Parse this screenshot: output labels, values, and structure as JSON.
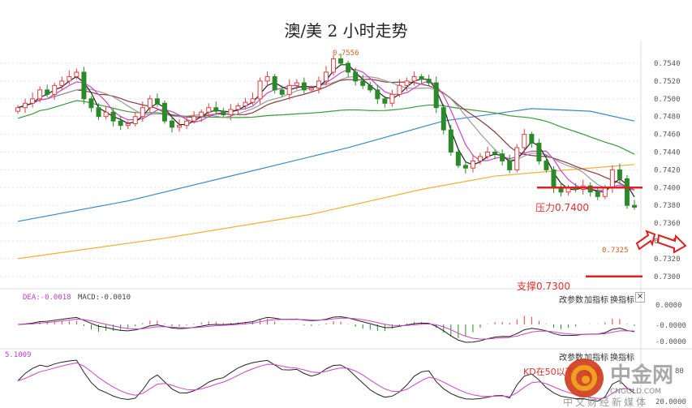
{
  "title": "澳/美 2 小时走势",
  "chart_data": {
    "type": "candlestick",
    "title": "澳/美 2 小时走势",
    "y_ticks": [
      "0.7540",
      "0.7520",
      "0.7500",
      "0.7480",
      "0.7460",
      "0.7440",
      "0.7420",
      "0.7400",
      "0.7380",
      "0.7360",
      "0.7340",
      "0.7320",
      "0.7300"
    ],
    "ylim": [
      0.729,
      0.7575
    ],
    "closes": [
      0.749,
      0.7495,
      0.75,
      0.751,
      0.7505,
      0.7515,
      0.752,
      0.7525,
      0.753,
      0.75,
      0.749,
      0.748,
      0.7485,
      0.7475,
      0.747,
      0.7472,
      0.748,
      0.749,
      0.75,
      0.7495,
      0.7475,
      0.7468,
      0.747,
      0.7475,
      0.748,
      0.7485,
      0.749,
      0.7486,
      0.7482,
      0.7488,
      0.7492,
      0.7496,
      0.75,
      0.752,
      0.7525,
      0.751,
      0.7505,
      0.7515,
      0.7518,
      0.751,
      0.7512,
      0.752,
      0.753,
      0.7545,
      0.754,
      0.753,
      0.752,
      0.7515,
      0.751,
      0.75,
      0.7495,
      0.7505,
      0.7515,
      0.752,
      0.7525,
      0.7522,
      0.7518,
      0.749,
      0.7465,
      0.744,
      0.7425,
      0.7422,
      0.743,
      0.7435,
      0.744,
      0.7438,
      0.743,
      0.742,
      0.7445,
      0.746,
      0.745,
      0.743,
      0.742,
      0.74,
      0.7395,
      0.74,
      0.7398,
      0.7402,
      0.7395,
      0.739,
      0.74,
      0.742,
      0.741,
      0.738,
      0.7378
    ],
    "long_ma_blue": [
      [
        0,
        0.7362
      ],
      [
        15,
        0.7385
      ],
      [
        30,
        0.7415
      ],
      [
        45,
        0.7445
      ],
      [
        58,
        0.7475
      ],
      [
        70,
        0.7489
      ],
      [
        78,
        0.7486
      ],
      [
        84,
        0.7475
      ]
    ],
    "long_ma_orange": [
      [
        0,
        0.732
      ],
      [
        20,
        0.7343
      ],
      [
        40,
        0.737
      ],
      [
        55,
        0.7398
      ],
      [
        65,
        0.7413
      ],
      [
        75,
        0.742
      ],
      [
        84,
        0.7426
      ]
    ],
    "high_label": "0.7556",
    "low_label": "0.7325",
    "colors": {
      "up": "#e04040",
      "down": "#2a8a2a",
      "ma5": "#222222",
      "ma10": "#cc44cc",
      "ma20": "#8b3a3a",
      "ma30": "#999999",
      "ma60": "#3a9a3a",
      "blue": "#3a8ac8",
      "orange": "#f0b030"
    }
  },
  "annotations": {
    "resistance": "压力0.7400",
    "support": "支撑0.7300",
    "kd_note": "KD在50以下方整理"
  },
  "macd": {
    "dea": "DEA:-0.0018",
    "macd": "MACD:-0.0010",
    "axis": [
      "0.0000",
      "-0.0000",
      "-0.0000"
    ]
  },
  "kd": {
    "value": "5.1009",
    "axis_top": "80",
    "axis_bottom": "20.0000"
  },
  "buttons": {
    "params": "改参数",
    "add": "加指标",
    "swap": "换指标",
    "close": "×"
  },
  "logo": {
    "name": "中金网",
    "domain": "CNGOLD.COM",
    "slogan": "中文财经新媒体"
  }
}
